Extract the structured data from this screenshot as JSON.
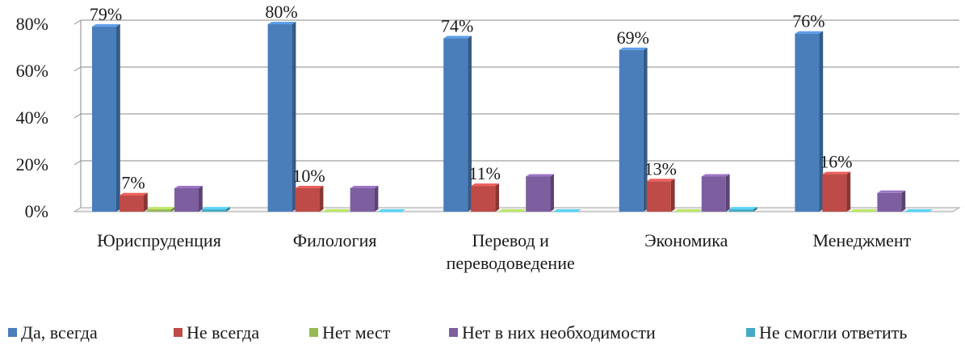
{
  "chart_data": {
    "type": "bar",
    "categories": [
      [
        "Юриспруденция"
      ],
      [
        "Филология"
      ],
      [
        "Перевод и",
        "переводоведение"
      ],
      [
        "Экономика"
      ],
      [
        "Менеджмент"
      ]
    ],
    "series": [
      {
        "name": "Да, всегда",
        "color": "#4a7ebb",
        "values": [
          79,
          80,
          74,
          69,
          76
        ],
        "labels": [
          "79%",
          "80%",
          "74%",
          "69%",
          "76%"
        ]
      },
      {
        "name": "Не всегда",
        "color": "#be4b48",
        "values": [
          7,
          10,
          11,
          13,
          16
        ],
        "labels": [
          "7%",
          "10%",
          "11%",
          "13%",
          "16%"
        ]
      },
      {
        "name": "Нет мест",
        "color": "#98b954",
        "values": [
          1,
          0,
          0,
          0,
          0
        ],
        "labels": []
      },
      {
        "name": "Нет в них необходимости",
        "color": "#7d5fa0",
        "values": [
          10,
          10,
          15,
          15,
          8
        ],
        "labels": []
      },
      {
        "name": "Не смогли ответить",
        "color": "#46aac5",
        "values": [
          1,
          0,
          0,
          1,
          0
        ],
        "labels": []
      }
    ],
    "y_ticks": [
      "0%",
      "20%",
      "40%",
      "60%",
      "80%"
    ],
    "ylim": [
      0,
      80
    ],
    "grid": true,
    "legend": "bottom"
  }
}
